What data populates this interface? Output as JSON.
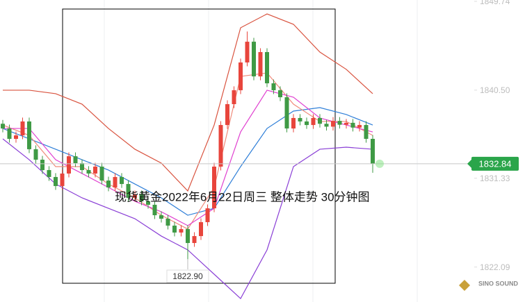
{
  "chart_data": {
    "type": "candlestick",
    "title": "现货黄金2022年6月22日周三 整体走势  30分钟图",
    "watermark": "SINO SOUND",
    "ylim": [
      1818.45,
      1849.88
    ],
    "yticks": [
      1849.74,
      {
        "value": 1840.5,
        "label": "1840.50"
      },
      1831.33,
      1822.09
    ],
    "last_price": 1832.84,
    "low_label": {
      "value": 1822.9,
      "label": "1822.90"
    },
    "up_color": "#e8453c",
    "down_color": "#3f9a45",
    "x": [
      0,
      1,
      2,
      3,
      4,
      5,
      6,
      7,
      8,
      9,
      10,
      11,
      12,
      13,
      14,
      15,
      16,
      17,
      18,
      19,
      20,
      21,
      22,
      23,
      24,
      25,
      26,
      27,
      28,
      29,
      30,
      31,
      32,
      33,
      34,
      35,
      36,
      37,
      38,
      39,
      40,
      41,
      42,
      43,
      44,
      45,
      46,
      47,
      48,
      49,
      50,
      51,
      52,
      53,
      54,
      55,
      56
    ],
    "open": [
      1837.0,
      1836.51,
      1835.43,
      1835.79,
      1837.24,
      1834.35,
      1833.26,
      1832.18,
      1831.46,
      1830.52,
      1831.82,
      1833.62,
      1832.9,
      1832.18,
      1831.82,
      1832.54,
      1831.09,
      1830.37,
      1831.46,
      1830.73,
      1829.29,
      1829.65,
      1828.93,
      1828.57,
      1827.48,
      1827.12,
      1826.4,
      1825.68,
      1826.04,
      1824.59,
      1825.31,
      1826.76,
      1828.2,
      1832.54,
      1836.87,
      1839.04,
      1840.49,
      1843.38,
      1845.54,
      1841.93,
      1844.46,
      1841.21,
      1840.49,
      1839.76,
      1836.51,
      1837.6,
      1837.24,
      1836.87,
      1837.6,
      1837.0,
      1836.7,
      1837.3,
      1836.9,
      1837.1,
      1836.6,
      1836.87,
      1835.43
    ],
    "high": [
      1837.4,
      1836.91,
      1836.19,
      1837.64,
      1837.64,
      1834.75,
      1833.66,
      1832.58,
      1831.86,
      1832.22,
      1834.02,
      1834.02,
      1833.3,
      1832.58,
      1832.94,
      1832.94,
      1831.49,
      1831.86,
      1831.86,
      1831.13,
      1830.05,
      1830.05,
      1829.33,
      1828.97,
      1827.88,
      1827.52,
      1826.8,
      1826.44,
      1826.44,
      1825.71,
      1827.16,
      1828.6,
      1832.94,
      1837.27,
      1839.44,
      1840.89,
      1843.78,
      1846.6,
      1845.94,
      1844.86,
      1844.86,
      1841.61,
      1840.89,
      1840.16,
      1838.0,
      1838.0,
      1837.64,
      1838.0,
      1838.0,
      1837.4,
      1837.7,
      1837.7,
      1837.5,
      1837.5,
      1837.27,
      1837.27,
      1835.83
    ],
    "low": [
      1836.11,
      1835.03,
      1835.03,
      1835.39,
      1833.95,
      1832.86,
      1831.78,
      1831.06,
      1830.12,
      1830.12,
      1831.42,
      1832.5,
      1831.78,
      1831.42,
      1831.42,
      1830.69,
      1829.97,
      1829.97,
      1830.33,
      1828.89,
      1828.89,
      1828.53,
      1828.17,
      1827.08,
      1826.72,
      1826.0,
      1825.28,
      1825.28,
      1822.9,
      1824.19,
      1824.91,
      1826.36,
      1827.8,
      1832.14,
      1836.47,
      1838.64,
      1840.09,
      1842.98,
      1841.53,
      1841.53,
      1840.81,
      1840.09,
      1839.36,
      1836.11,
      1836.11,
      1836.84,
      1836.47,
      1836.47,
      1836.6,
      1836.3,
      1836.3,
      1836.5,
      1836.5,
      1836.2,
      1836.2,
      1835.03,
      1831.9
    ],
    "close": [
      1836.51,
      1835.43,
      1835.79,
      1837.24,
      1834.35,
      1833.26,
      1832.18,
      1831.46,
      1830.52,
      1831.82,
      1833.62,
      1832.9,
      1832.18,
      1831.82,
      1832.54,
      1831.09,
      1830.37,
      1831.46,
      1830.73,
      1829.29,
      1829.65,
      1828.93,
      1828.57,
      1827.48,
      1827.12,
      1826.4,
      1825.68,
      1826.04,
      1824.59,
      1825.31,
      1826.76,
      1828.2,
      1832.54,
      1836.87,
      1839.04,
      1840.49,
      1843.38,
      1845.54,
      1841.93,
      1844.46,
      1841.21,
      1840.49,
      1839.76,
      1836.51,
      1837.6,
      1837.24,
      1836.87,
      1837.6,
      1837.0,
      1836.7,
      1837.3,
      1836.9,
      1837.1,
      1836.6,
      1836.87,
      1835.43,
      1832.84
    ],
    "overlays": [
      {
        "color": "#d9533f",
        "x": [
          0,
          4,
          8,
          12,
          16,
          20,
          24,
          28,
          32,
          36,
          40,
          44,
          48,
          52,
          56
        ],
        "values": [
          1840.49,
          1840.49,
          1840.13,
          1839.04,
          1836.51,
          1834.35,
          1832.9,
          1830.01,
          1836.87,
          1846.99,
          1848.43,
          1847.35,
          1844.46,
          1842.66,
          1840.13
        ]
      },
      {
        "color": "#8a3fd6",
        "x": [
          0,
          4,
          8,
          12,
          16,
          20,
          24,
          28,
          32,
          36,
          40,
          44,
          48,
          52,
          56
        ],
        "values": [
          1835.43,
          1833.26,
          1830.73,
          1829.29,
          1828.2,
          1827.12,
          1825.31,
          1823.87,
          1821.34,
          1818.81,
          1823.87,
          1832.54,
          1834.35,
          1834.56,
          1834.35
        ]
      },
      {
        "color": "#2f7fd8",
        "x": [
          0,
          4,
          8,
          12,
          16,
          20,
          24,
          28,
          32,
          36,
          40,
          44,
          48,
          52,
          56
        ],
        "values": [
          1836.51,
          1835.43,
          1834.35,
          1833.26,
          1832.18,
          1830.73,
          1829.29,
          1827.48,
          1828.2,
          1832.54,
          1836.51,
          1838.32,
          1838.68,
          1837.96,
          1836.87
        ]
      },
      {
        "color": "#f08a7a",
        "x": [
          0,
          4,
          8,
          12,
          16,
          20,
          24,
          28,
          32,
          36,
          40,
          44,
          48,
          52,
          56
        ],
        "values": [
          1836.87,
          1835.79,
          1832.54,
          1832.54,
          1830.73,
          1829.29,
          1827.48,
          1826.04,
          1830.37,
          1841.93,
          1842.29,
          1839.04,
          1837.24,
          1837.24,
          1835.79
        ]
      },
      {
        "color": "#e040d0",
        "x": [
          0,
          4,
          8,
          12,
          16,
          20,
          24,
          28,
          32,
          36,
          40,
          44,
          48,
          52,
          56
        ],
        "values": [
          1836.51,
          1836.51,
          1833.26,
          1831.82,
          1830.37,
          1828.93,
          1827.84,
          1826.4,
          1828.2,
          1836.15,
          1840.49,
          1839.76,
          1837.6,
          1836.87,
          1836.15
        ]
      }
    ]
  }
}
